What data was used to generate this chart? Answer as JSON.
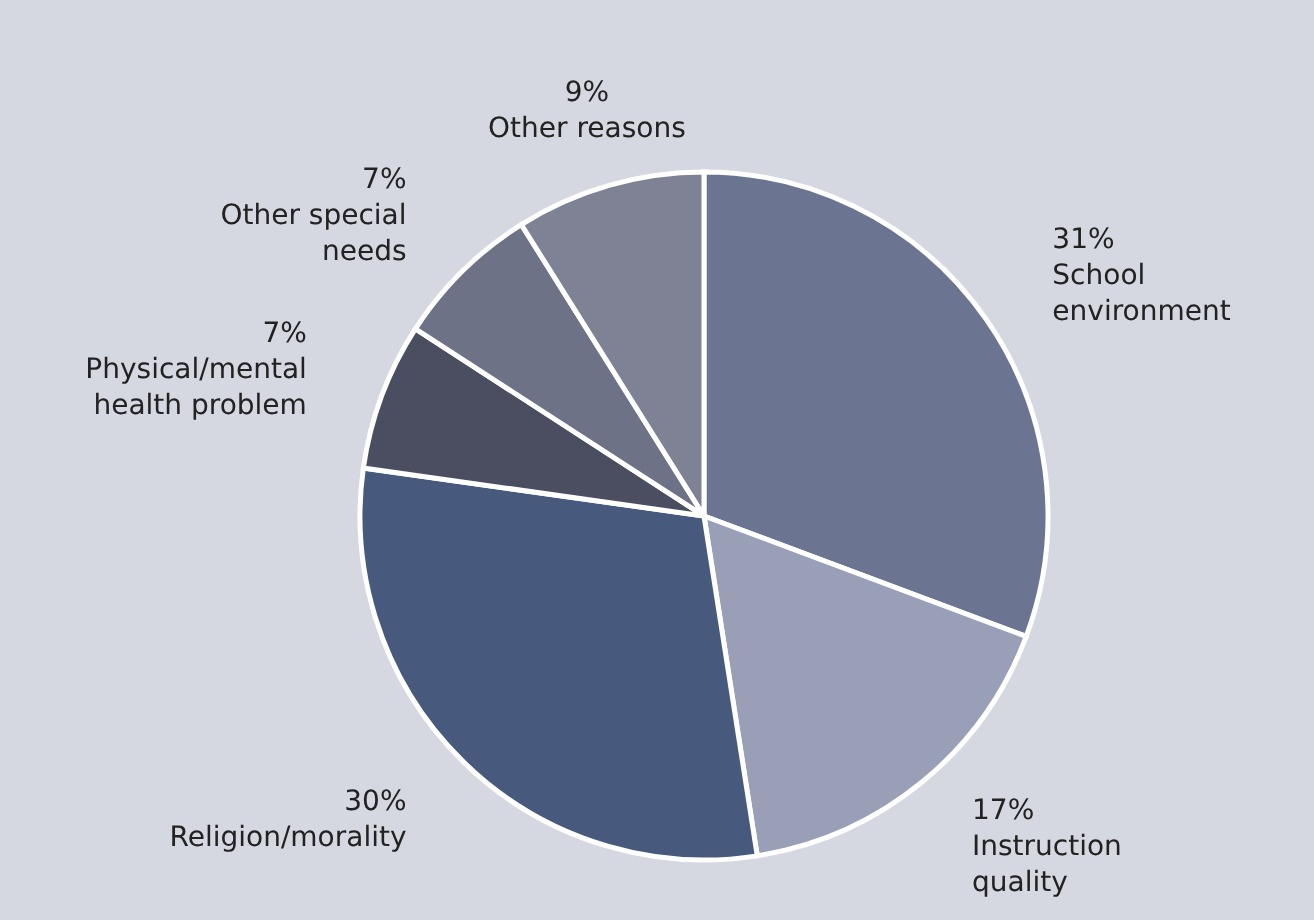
{
  "chart_data": {
    "type": "pie",
    "categories": [
      "School environment",
      "Instruction quality",
      "Religion/morality",
      "Physical/mental health problem",
      "Other special needs",
      "Other reasons"
    ],
    "values": [
      31,
      17,
      30,
      7,
      7,
      9
    ],
    "value_labels": [
      "31%",
      "17%",
      "30%",
      "7%",
      "7%",
      "9%"
    ],
    "colors": [
      "#6b7591",
      "#9a9fb8",
      "#475a7d",
      "#4a4e60",
      "#6e7286",
      "#7e8294"
    ]
  }
}
